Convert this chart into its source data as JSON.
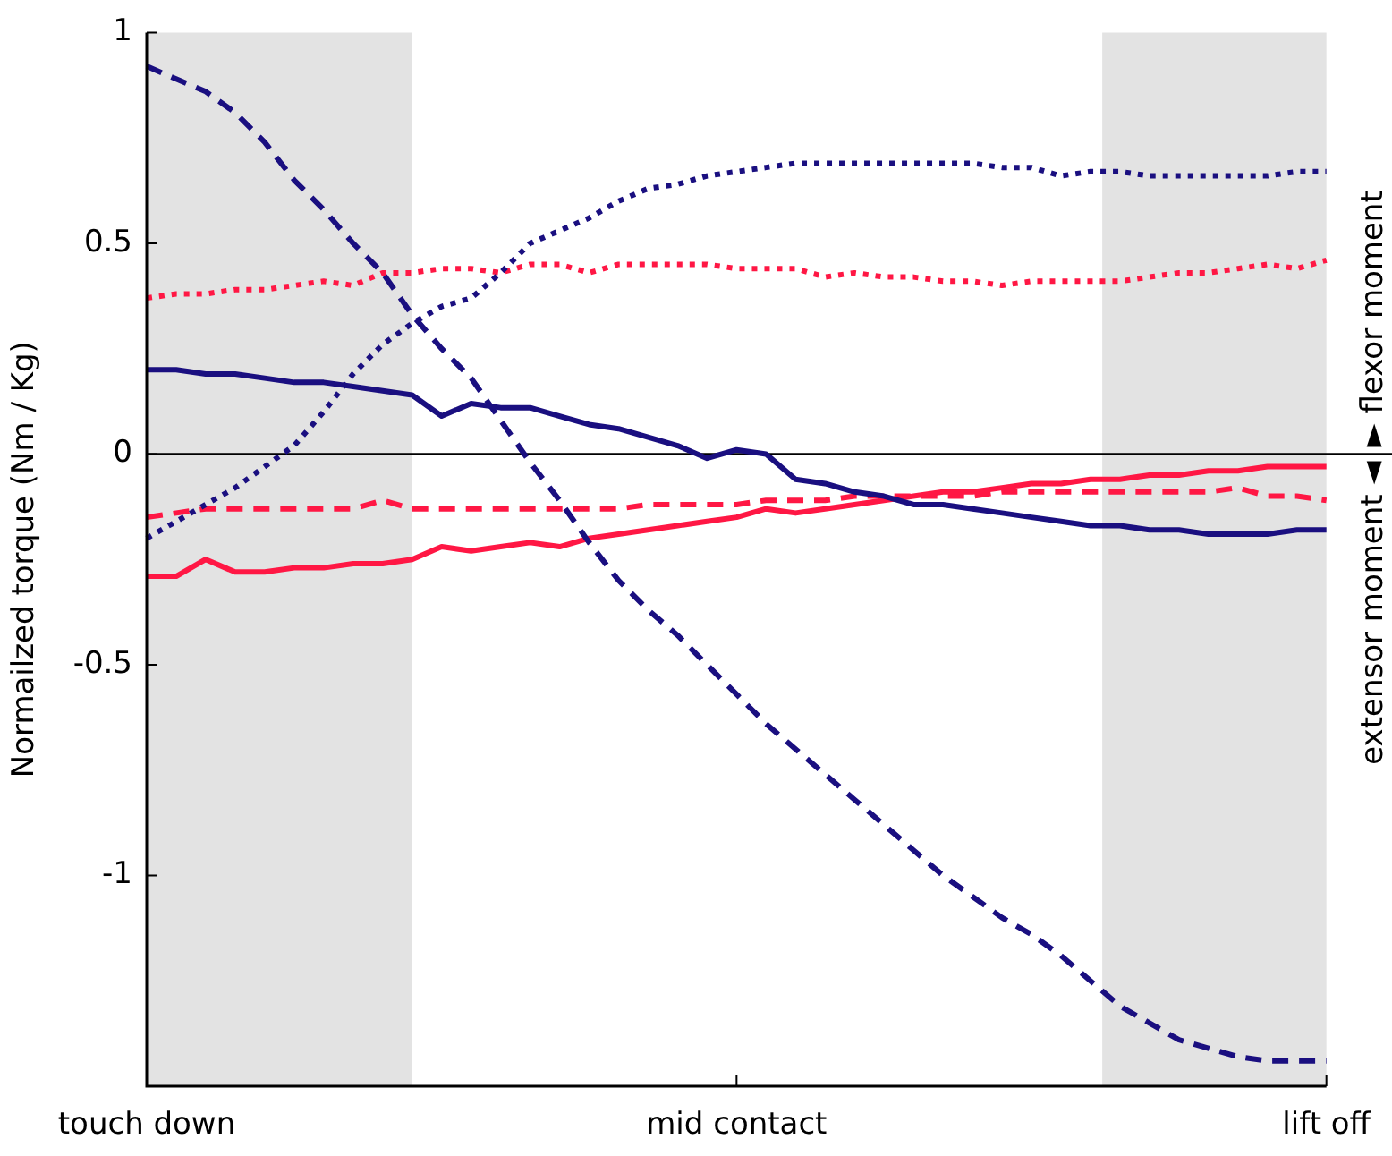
{
  "chart_data": {
    "type": "line",
    "ylabel": "Normailzed torque (Nm / Kg)",
    "categories": [
      "touch down",
      null,
      null,
      null,
      null,
      null,
      null,
      null,
      null,
      null,
      null,
      null,
      null,
      null,
      null,
      null,
      null,
      null,
      null,
      null,
      "mid contact",
      null,
      null,
      null,
      null,
      null,
      null,
      null,
      null,
      null,
      null,
      null,
      null,
      null,
      null,
      null,
      null,
      null,
      null,
      null,
      "lift off"
    ],
    "ylim": [
      -1.5,
      1
    ],
    "yticks": [
      1,
      0.5,
      0,
      -0.5,
      -1
    ],
    "grid": false,
    "legend": false,
    "marker": "none",
    "ref_lines": [
      {
        "axis": "y",
        "value": 0,
        "color": "#000000"
      }
    ],
    "annotations": [
      "extensor moment ◄",
      "► flexor moment"
    ],
    "series": [
      {
        "color": "#1a0f80",
        "line_style": "solid",
        "values": [
          0.2,
          0.2,
          0.19,
          0.19,
          0.18,
          0.17,
          0.17,
          0.16,
          0.15,
          0.14,
          0.09,
          0.12,
          0.11,
          0.11,
          0.09,
          0.07,
          0.06,
          0.04,
          0.02,
          -0.01,
          0.01,
          0,
          -0.06,
          -0.07,
          -0.09,
          -0.1,
          -0.12,
          -0.12,
          -0.13,
          -0.14,
          -0.15,
          -0.16,
          -0.17,
          -0.17,
          -0.18,
          -0.18,
          -0.19,
          -0.19,
          -0.19,
          -0.18,
          -0.18
        ]
      },
      {
        "color": "#1a0f80",
        "line_style": "dashed",
        "values": [
          0.92,
          0.89,
          0.86,
          0.81,
          0.74,
          0.65,
          0.58,
          0.5,
          0.43,
          0.33,
          0.25,
          0.18,
          0.08,
          -0.02,
          -0.11,
          -0.21,
          -0.3,
          -0.37,
          -0.43,
          -0.5,
          -0.57,
          -0.64,
          -0.7,
          -0.76,
          -0.82,
          -0.88,
          -0.94,
          -1,
          -1.05,
          -1.1,
          -1.14,
          -1.19,
          -1.25,
          -1.31,
          -1.35,
          -1.39,
          -1.41,
          -1.43,
          -1.44,
          -1.44,
          -1.44
        ]
      },
      {
        "color": "#1a0f80",
        "line_style": "dotted",
        "values": [
          -0.2,
          -0.16,
          -0.12,
          -0.08,
          -0.03,
          0.02,
          0.1,
          0.19,
          0.26,
          0.31,
          0.35,
          0.37,
          0.43,
          0.5,
          0.53,
          0.56,
          0.6,
          0.63,
          0.64,
          0.66,
          0.67,
          0.68,
          0.69,
          0.69,
          0.69,
          0.69,
          0.69,
          0.69,
          0.69,
          0.68,
          0.68,
          0.66,
          0.67,
          0.67,
          0.66,
          0.66,
          0.66,
          0.66,
          0.66,
          0.67,
          0.67
        ]
      },
      {
        "color": "#ff1744",
        "line_style": "solid",
        "values": [
          -0.29,
          -0.29,
          -0.25,
          -0.28,
          -0.28,
          -0.27,
          -0.27,
          -0.26,
          -0.26,
          -0.25,
          -0.22,
          -0.23,
          -0.22,
          -0.21,
          -0.22,
          -0.2,
          -0.19,
          -0.18,
          -0.17,
          -0.16,
          -0.15,
          -0.13,
          -0.14,
          -0.13,
          -0.12,
          -0.11,
          -0.1,
          -0.09,
          -0.09,
          -0.08,
          -0.07,
          -0.07,
          -0.06,
          -0.06,
          -0.05,
          -0.05,
          -0.04,
          -0.04,
          -0.03,
          -0.03,
          -0.03
        ]
      },
      {
        "color": "#ff1744",
        "line_style": "dashed",
        "values": [
          -0.15,
          -0.14,
          -0.13,
          -0.13,
          -0.13,
          -0.13,
          -0.13,
          -0.13,
          -0.11,
          -0.13,
          -0.13,
          -0.13,
          -0.13,
          -0.13,
          -0.13,
          -0.13,
          -0.13,
          -0.12,
          -0.12,
          -0.12,
          -0.12,
          -0.11,
          -0.11,
          -0.11,
          -0.1,
          -0.1,
          -0.1,
          -0.1,
          -0.1,
          -0.09,
          -0.09,
          -0.09,
          -0.09,
          -0.09,
          -0.09,
          -0.09,
          -0.09,
          -0.08,
          -0.1,
          -0.1,
          -0.11
        ]
      },
      {
        "color": "#ff1744",
        "line_style": "dotted",
        "values": [
          0.37,
          0.38,
          0.38,
          0.39,
          0.39,
          0.4,
          0.41,
          0.4,
          0.43,
          0.43,
          0.44,
          0.44,
          0.43,
          0.45,
          0.45,
          0.43,
          0.45,
          0.45,
          0.45,
          0.45,
          0.44,
          0.44,
          0.44,
          0.42,
          0.43,
          0.42,
          0.42,
          0.41,
          0.41,
          0.4,
          0.41,
          0.41,
          0.41,
          0.41,
          0.42,
          0.43,
          0.43,
          0.44,
          0.45,
          0.44,
          0.46
        ]
      }
    ]
  }
}
